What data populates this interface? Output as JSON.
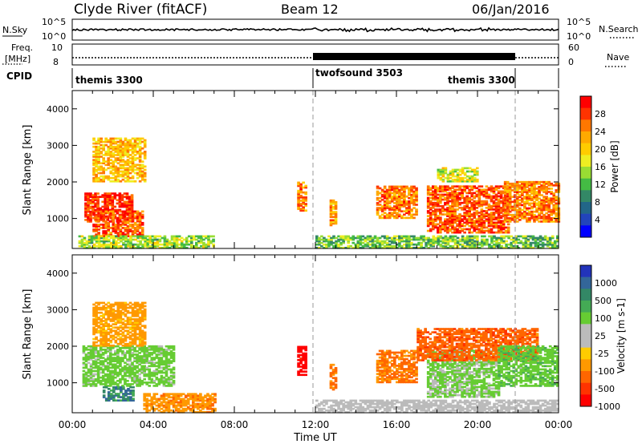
{
  "header": {
    "station": "Clyde River (fitACF)",
    "beam": "Beam 12",
    "date": "06/Jan/2016"
  },
  "strips": {
    "nsky_label": "N.Sky",
    "nsky_ticks": [
      "10^5",
      "10^0"
    ],
    "nsearch_label": "N.Search",
    "nsearch_ticks": [
      "10^5",
      "10^0"
    ],
    "freq_label_1": "Freq.",
    "freq_label_2": "[MHz]",
    "freq_ticks": [
      "10",
      "8"
    ],
    "nave_label": "Nave",
    "nave_ticks": [
      "60",
      "0"
    ],
    "cpid_label": "CPID",
    "cpid_segments": [
      {
        "name": "themis 3300",
        "start_hour": 0,
        "end_hour": 12
      },
      {
        "name": "twofsound 3503",
        "start_hour": 12,
        "end_hour": 22
      },
      {
        "name": "themis 3300",
        "start_hour": 22,
        "end_hour": 24
      }
    ]
  },
  "colorbars": {
    "power": {
      "label": "Power [dB]",
      "ticks": [
        "28",
        "24",
        "20",
        "16",
        "12",
        "8",
        "4"
      ],
      "colors": [
        "#ff0000",
        "#ff3300",
        "#ff7700",
        "#ffaa00",
        "#ffcc00",
        "#eeee22",
        "#99dd33",
        "#44bb44",
        "#338866",
        "#226688",
        "#2244bb",
        "#0000ff"
      ]
    },
    "velocity": {
      "label": "Velocity [m s-1]",
      "ticks": [
        "1000",
        "500",
        "100",
        "25",
        "-25",
        "-100",
        "-500",
        "-1000"
      ],
      "colors": [
        "#2233bb",
        "#336699",
        "#338866",
        "#44aa55",
        "#66cc33",
        "#bbbbbb",
        "#bbbbbb",
        "#ffcc00",
        "#ff9900",
        "#ff6600",
        "#ff3300",
        "#ff0000"
      ]
    }
  },
  "chart_data": [
    {
      "type": "heatmap",
      "name": "power",
      "ylabel": "Slant Range [km]",
      "xlabel": "",
      "xlim": [
        0,
        24
      ],
      "ylim": [
        180,
        4500
      ],
      "y_ticks": [
        1000,
        2000,
        3000,
        4000
      ],
      "echo_regions": [
        {
          "t0": 0.6,
          "t1": 3.0,
          "r0": 900,
          "r1": 1700,
          "value": 28
        },
        {
          "t0": 1.0,
          "t1": 3.5,
          "r0": 500,
          "r1": 1200,
          "value": 26
        },
        {
          "t0": 1.0,
          "t1": 3.6,
          "r0": 2000,
          "r1": 3200,
          "value": 20
        },
        {
          "t0": 0.3,
          "t1": 7.0,
          "r0": 180,
          "r1": 500,
          "value": 14
        },
        {
          "t0": 11.1,
          "t1": 11.5,
          "r0": 1200,
          "r1": 2000,
          "value": 24
        },
        {
          "t0": 12.7,
          "t1": 13.0,
          "r0": 800,
          "r1": 1500,
          "value": 22
        },
        {
          "t0": 15.0,
          "t1": 17.0,
          "r0": 1000,
          "r1": 1900,
          "value": 24
        },
        {
          "t0": 17.5,
          "t1": 21.5,
          "r0": 600,
          "r1": 1900,
          "value": 26
        },
        {
          "t0": 18.0,
          "t1": 20.0,
          "r0": 2000,
          "r1": 2400,
          "value": 16
        },
        {
          "t0": 21.3,
          "t1": 24.0,
          "r0": 900,
          "r1": 2000,
          "value": 24
        },
        {
          "t0": 12.0,
          "t1": 24.0,
          "r0": 180,
          "r1": 500,
          "value": 12
        }
      ]
    },
    {
      "type": "heatmap",
      "name": "velocity",
      "ylabel": "Slant Range [km]",
      "xlabel": "Time UT",
      "xlim": [
        0,
        24
      ],
      "ylim": [
        180,
        4500
      ],
      "x_ticks": [
        "00:00",
        "04:00",
        "08:00",
        "12:00",
        "16:00",
        "20:00",
        "00:00"
      ],
      "y_ticks": [
        1000,
        2000,
        3000,
        4000
      ],
      "echo_regions": [
        {
          "t0": 0.5,
          "t1": 5.0,
          "r0": 900,
          "r1": 2000,
          "value": 150
        },
        {
          "t0": 1.5,
          "t1": 3.0,
          "r0": 500,
          "r1": 900,
          "value": 600
        },
        {
          "t0": 1.0,
          "t1": 3.6,
          "r0": 2000,
          "r1": 3200,
          "value": -150
        },
        {
          "t0": 3.5,
          "t1": 7.0,
          "r0": 180,
          "r1": 700,
          "value": -200
        },
        {
          "t0": 11.1,
          "t1": 11.5,
          "r0": 1200,
          "r1": 2000,
          "value": -1200
        },
        {
          "t0": 12.7,
          "t1": 13.0,
          "r0": 800,
          "r1": 1500,
          "value": -300
        },
        {
          "t0": 15.0,
          "t1": 17.0,
          "r0": 1000,
          "r1": 1900,
          "value": -300
        },
        {
          "t0": 17.5,
          "t1": 21.0,
          "r0": 600,
          "r1": 1900,
          "value": 120
        },
        {
          "t0": 17.0,
          "t1": 23.0,
          "r0": 1600,
          "r1": 2500,
          "value": -400
        },
        {
          "t0": 21.0,
          "t1": 24.0,
          "r0": 900,
          "r1": 2000,
          "value": 200
        },
        {
          "t0": 12.0,
          "t1": 24.0,
          "r0": 180,
          "r1": 500,
          "value": 20
        }
      ]
    }
  ]
}
